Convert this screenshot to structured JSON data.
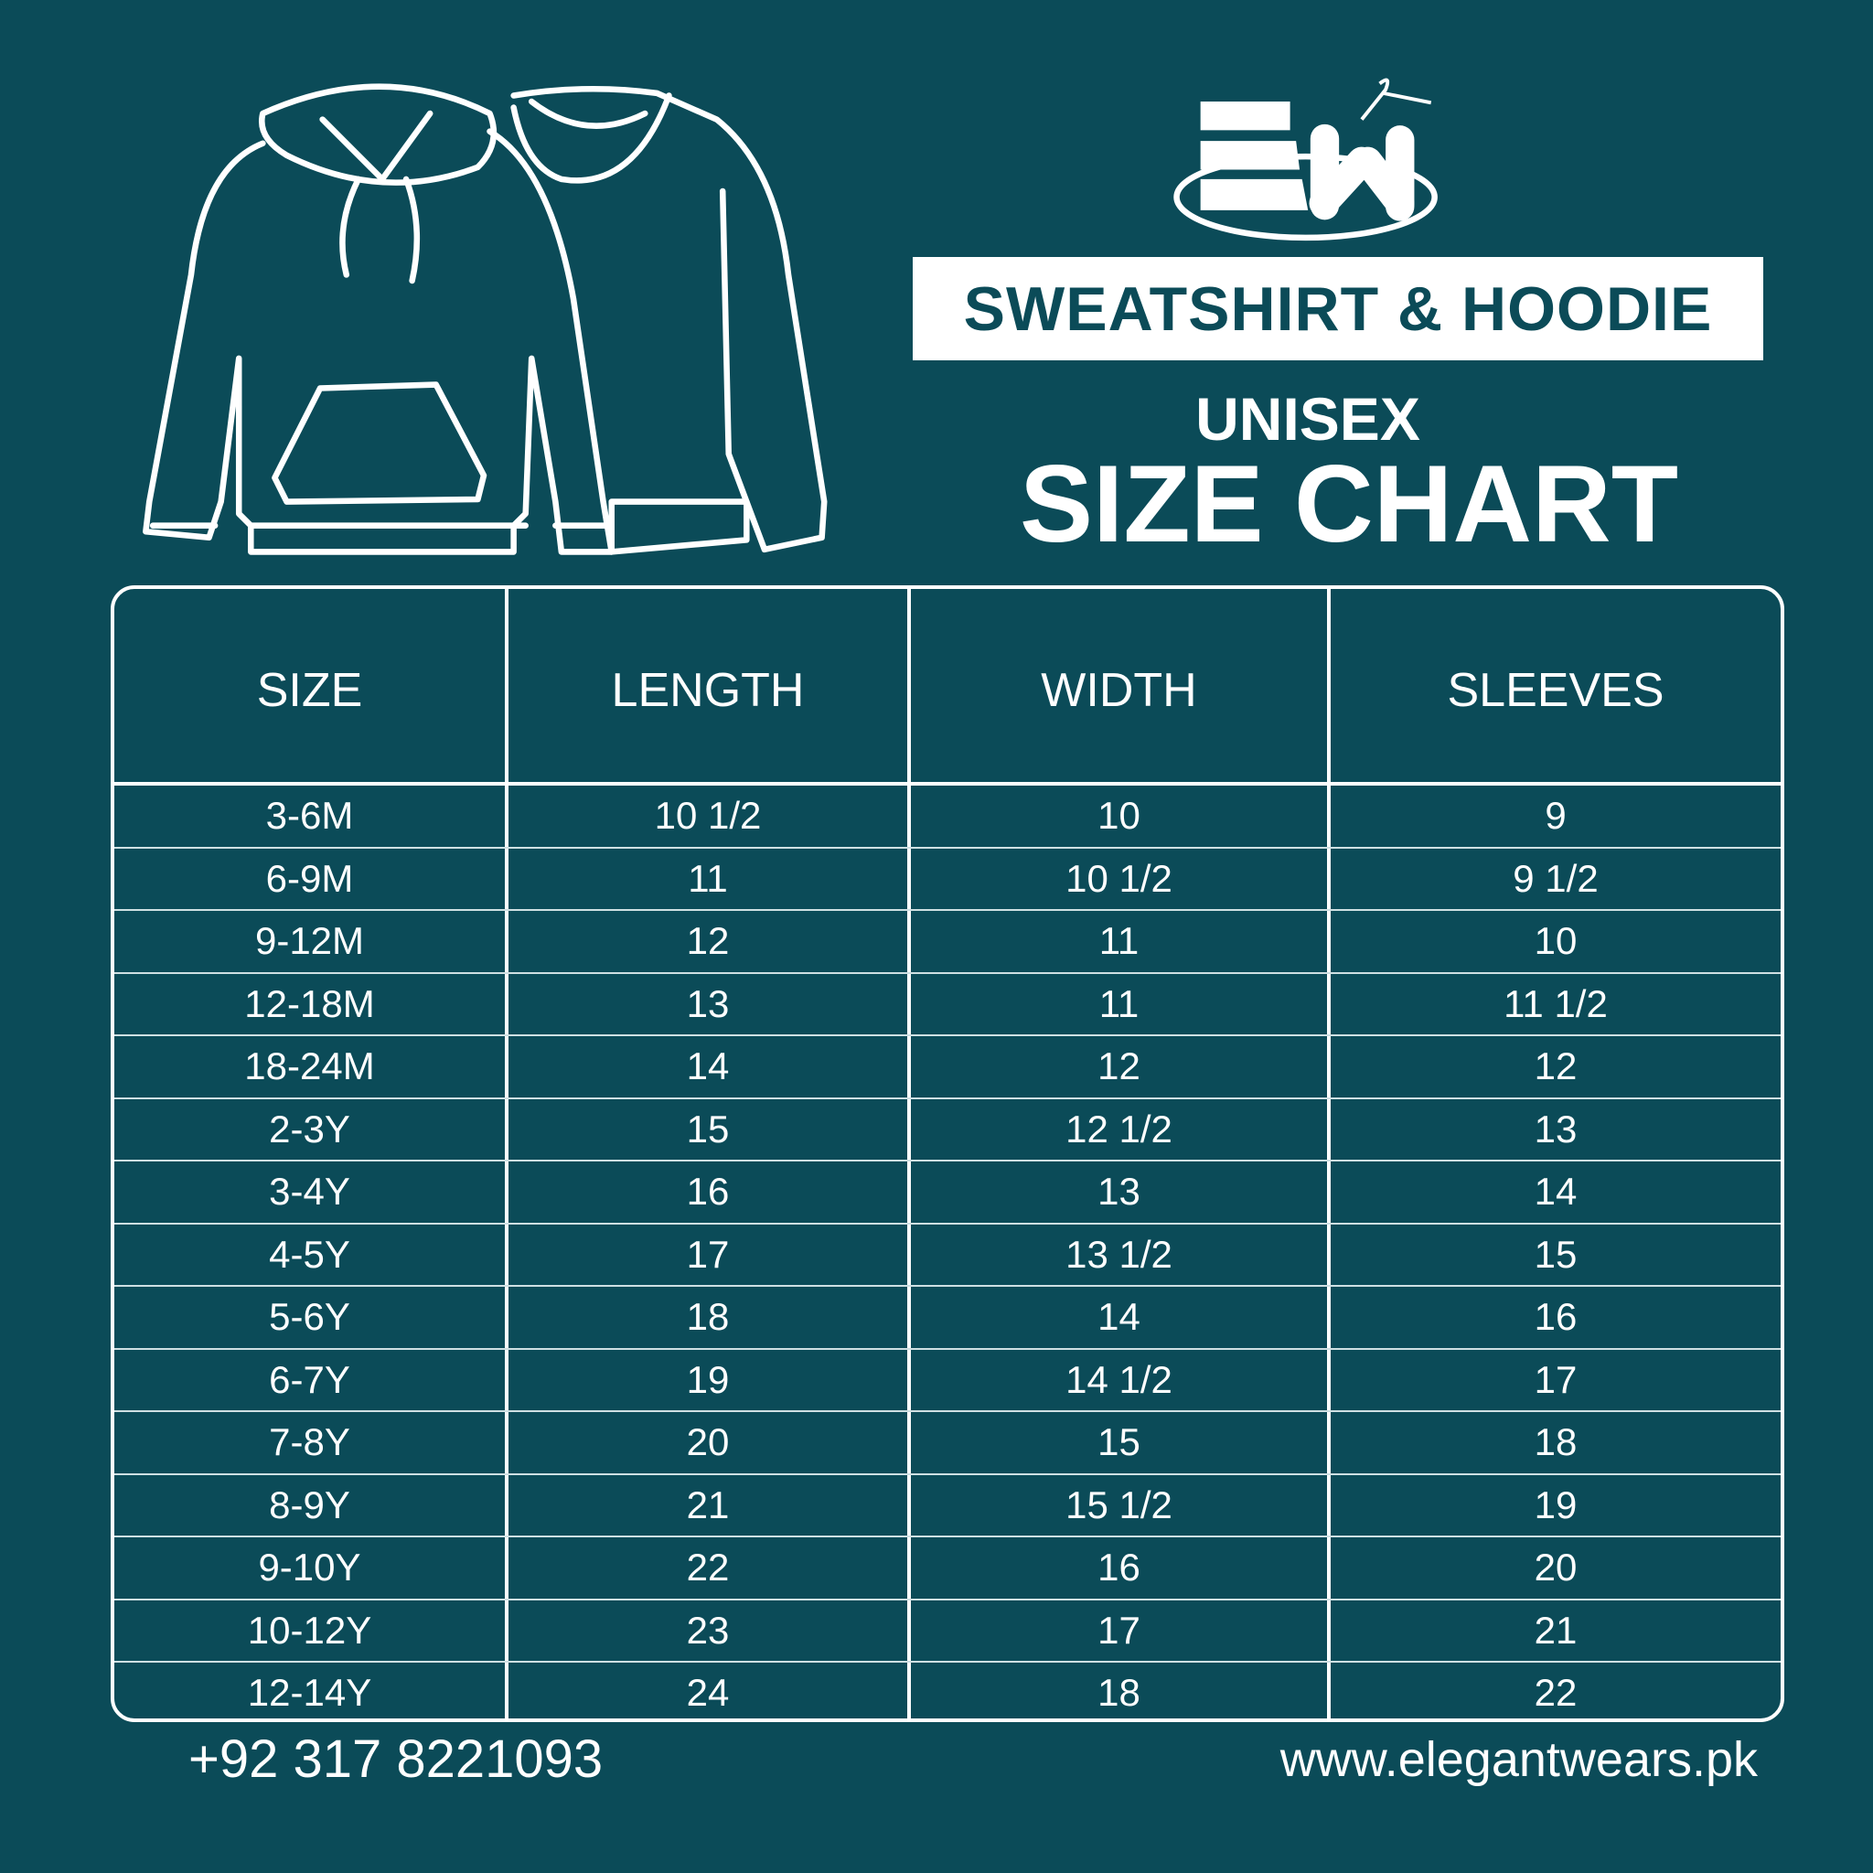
{
  "brand": {
    "logo_text": "EW"
  },
  "header": {
    "product": "SWEATSHIRT & HOODIE",
    "subtitle": "UNISEX",
    "title": "SIZE CHART"
  },
  "table": {
    "columns": [
      "SIZE",
      "LENGTH",
      "WIDTH",
      "SLEEVES"
    ],
    "rows": [
      [
        "3-6M",
        "10 1/2",
        "10",
        "9"
      ],
      [
        "6-9M",
        "11",
        "10 1/2",
        "9 1/2"
      ],
      [
        "9-12M",
        "12",
        "11",
        "10"
      ],
      [
        "12-18M",
        "13",
        "11",
        "11 1/2"
      ],
      [
        "18-24M",
        "14",
        "12",
        "12"
      ],
      [
        "2-3Y",
        "15",
        "12 1/2",
        "13"
      ],
      [
        "3-4Y",
        "16",
        "13",
        "14"
      ],
      [
        "4-5Y",
        "17",
        "13 1/2",
        "15"
      ],
      [
        "5-6Y",
        "18",
        "14",
        "16"
      ],
      [
        "6-7Y",
        "19",
        "14 1/2",
        "17"
      ],
      [
        "7-8Y",
        "20",
        "15",
        "18"
      ],
      [
        "8-9Y",
        "21",
        "15 1/2",
        "19"
      ],
      [
        "9-10Y",
        "22",
        "16",
        "20"
      ],
      [
        "10-12Y",
        "23",
        "17",
        "21"
      ],
      [
        "12-14Y",
        "24",
        "18",
        "22"
      ]
    ]
  },
  "footer": {
    "phone": "+92 317 8221093",
    "website": "www.elegantwears.pk"
  },
  "colors": {
    "background": "#0b4b58",
    "foreground": "#ffffff"
  }
}
